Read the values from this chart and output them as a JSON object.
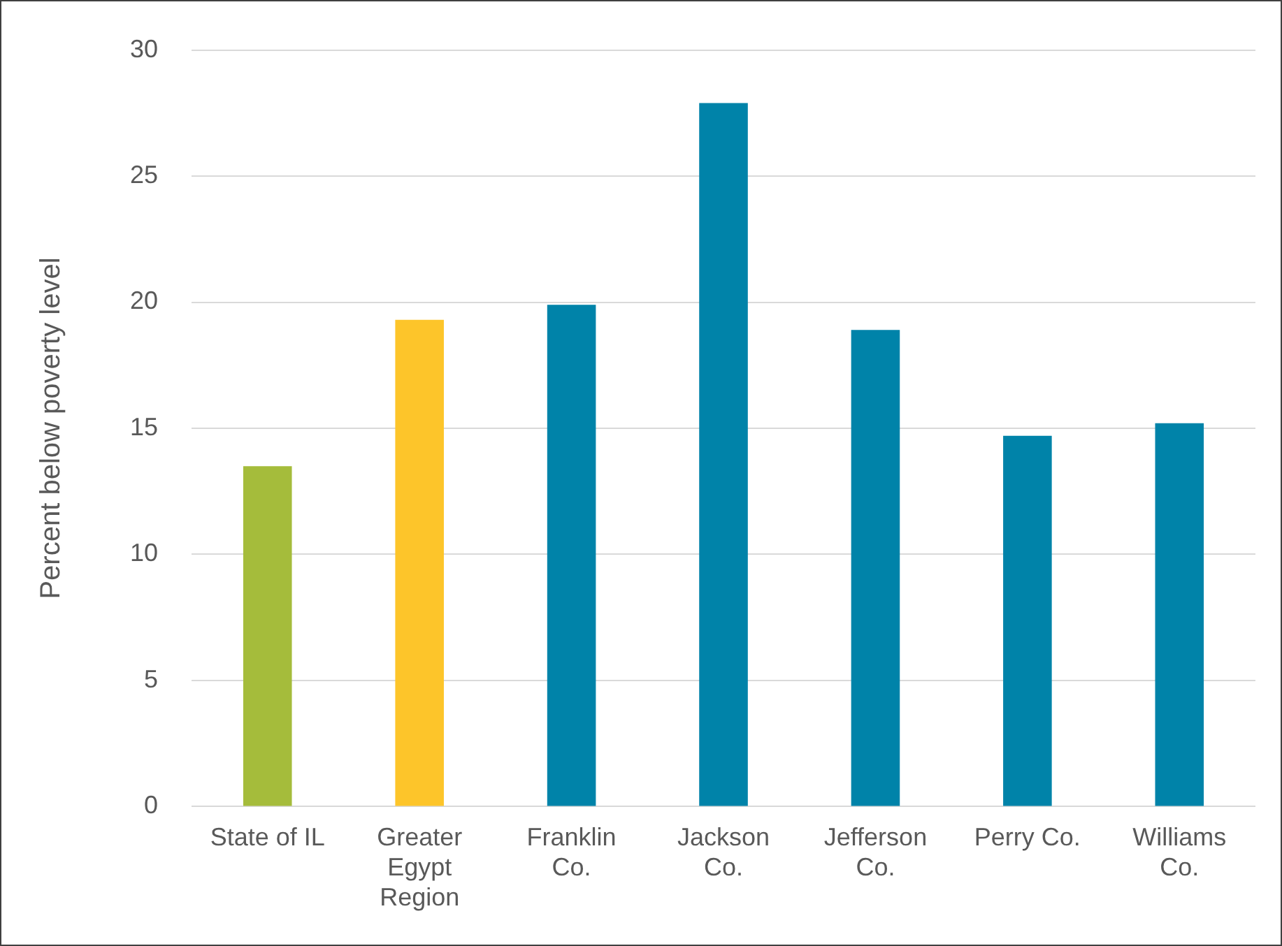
{
  "chart_data": {
    "type": "bar",
    "ylabel": "Percent below poverty level",
    "categories": [
      "State of IL",
      "Greater Egypt Region",
      "Franklin Co.",
      "Jackson Co.",
      "Jefferson Co.",
      "Perry Co.",
      "Williams Co."
    ],
    "values": [
      13.5,
      19.3,
      19.9,
      27.9,
      18.9,
      14.7,
      15.2
    ],
    "colors": [
      "#a5bc3b",
      "#fdc52a",
      "#0083a9",
      "#0083a9",
      "#0083a9",
      "#0083a9",
      "#0083a9"
    ],
    "ylim": [
      0,
      30
    ],
    "yticks": [
      0,
      5,
      10,
      15,
      20,
      25,
      30
    ],
    "grid": "y",
    "legend": false
  }
}
